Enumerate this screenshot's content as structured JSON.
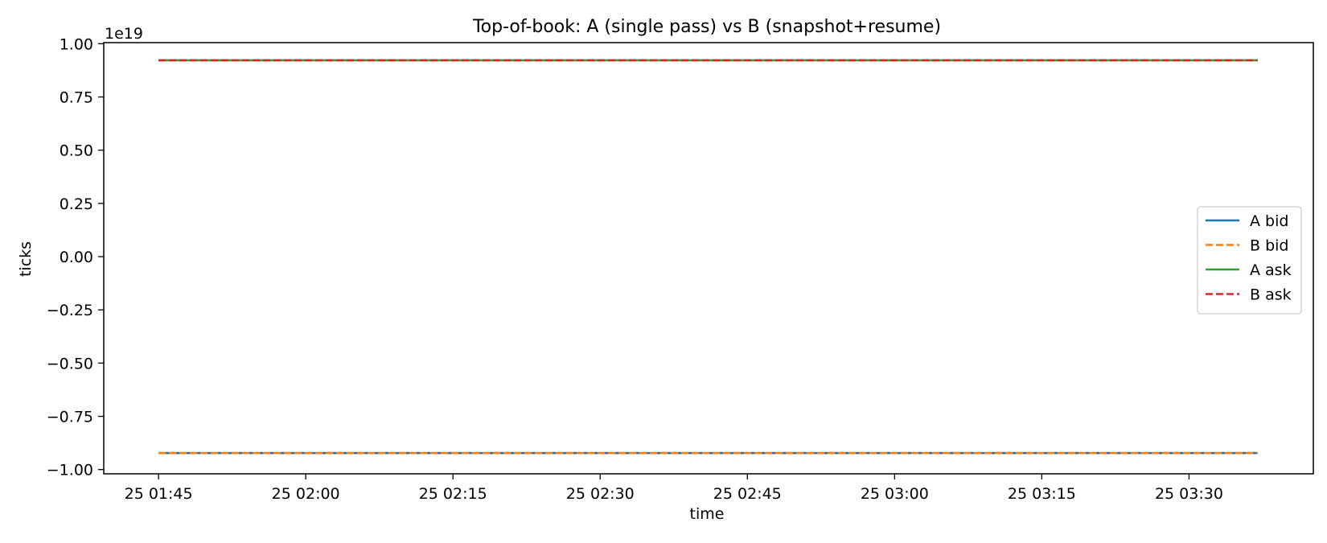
{
  "chart_data": {
    "type": "line",
    "title": "Top-of-book: A (single pass) vs B (snapshot+resume)",
    "xlabel": "time",
    "ylabel": "ticks",
    "y_offset_label": "1e19",
    "ylim": [
      -1.02,
      1.005
    ],
    "xlim": [
      "2024-01-25T01:39:25",
      "2024-01-25T03:42:40"
    ],
    "x_axis_type": "datetime",
    "x_tick_labels": [
      "25 01:45",
      "25 02:00",
      "25 02:15",
      "25 02:30",
      "25 02:45",
      "25 03:00",
      "25 03:15",
      "25 03:30"
    ],
    "x_tick_values": [
      "2024-01-25T01:45:00",
      "2024-01-25T02:00:00",
      "2024-01-25T02:15:00",
      "2024-01-25T02:30:00",
      "2024-01-25T02:45:00",
      "2024-01-25T03:00:00",
      "2024-01-25T03:15:00",
      "2024-01-25T03:30:00"
    ],
    "y_tick_labels": [
      "−1.00",
      "−0.75",
      "−0.50",
      "−0.25",
      "0.00",
      "0.25",
      "0.50",
      "0.75",
      "1.00"
    ],
    "y_tick_values": [
      -1.0,
      -0.75,
      -0.5,
      -0.25,
      0.0,
      0.25,
      0.5,
      0.75,
      1.0
    ],
    "grid": false,
    "legend_position": "center-right",
    "series": [
      {
        "name": "A bid",
        "color": "#1f77b4",
        "dash": "solid",
        "x": [
          "2024-01-25T01:45:00",
          "2024-01-25T03:37:00"
        ],
        "y": [
          -0.9223,
          -0.9223
        ]
      },
      {
        "name": "B bid",
        "color": "#ff7f0e",
        "dash": "dashed",
        "x": [
          "2024-01-25T01:45:00",
          "2024-01-25T03:37:00"
        ],
        "y": [
          -0.9223,
          -0.9223
        ]
      },
      {
        "name": "A ask",
        "color": "#2ca02c",
        "dash": "solid",
        "x": [
          "2024-01-25T01:45:00",
          "2024-01-25T03:37:00"
        ],
        "y": [
          0.9223,
          0.9223
        ]
      },
      {
        "name": "B ask",
        "color": "#d62728",
        "dash": "dashed",
        "x": [
          "2024-01-25T01:45:00",
          "2024-01-25T03:37:00"
        ],
        "y": [
          0.9223,
          0.9223
        ]
      }
    ]
  }
}
